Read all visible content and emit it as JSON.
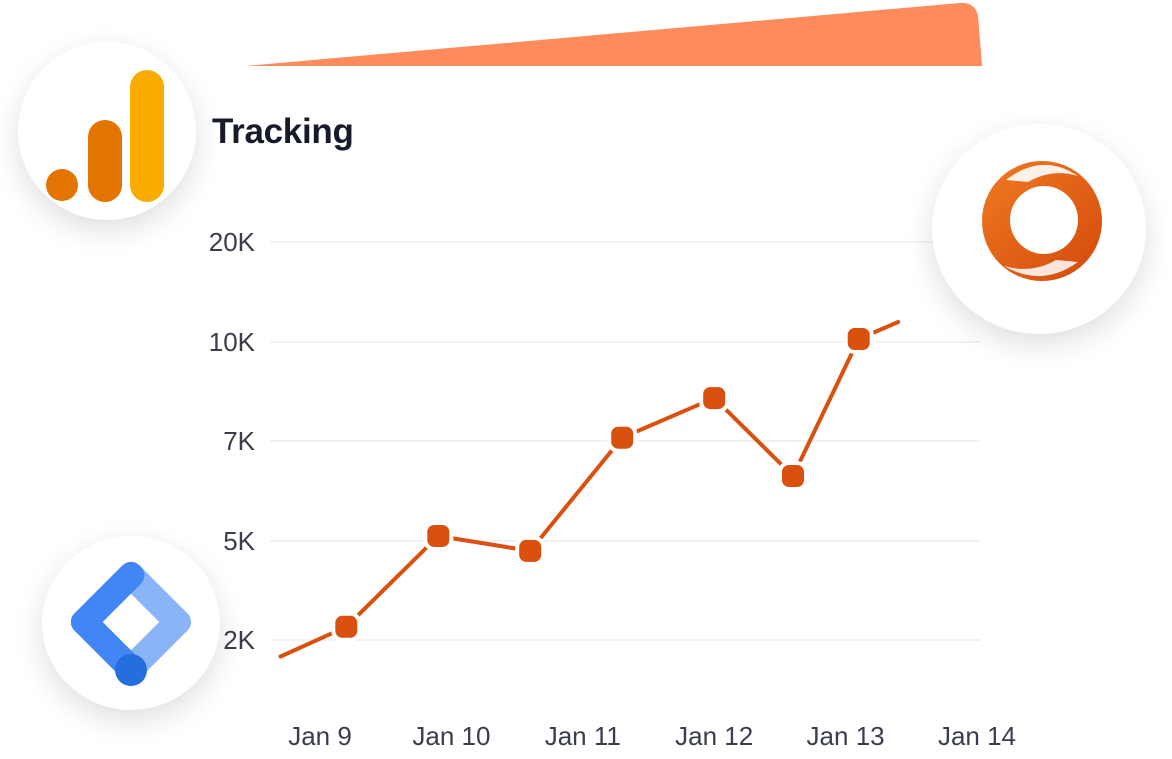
{
  "title": "Tracking",
  "colors": {
    "line": "#d9500f",
    "marker": "#d9500f",
    "banner": "#ff8a5b",
    "grid": "#f1f2f5",
    "title": "#171a2b"
  },
  "icons": {
    "top_left": "google-analytics-icon",
    "bottom_left": "google-tag-manager-icon",
    "top_right": "orange-ring-logo-icon"
  },
  "chart_data": {
    "type": "line",
    "title": "Tracking",
    "xlabel": "",
    "ylabel": "",
    "categories": [
      "Jan 9",
      "Jan 10",
      "Jan 11",
      "Jan 12",
      "Jan 13",
      "Jan 14"
    ],
    "y_ticks": [
      "20K",
      "10K",
      "7K",
      "5K",
      "2K"
    ],
    "y_tick_values": [
      20000,
      10000,
      7000,
      5000,
      2000
    ],
    "x": [
      8.7,
      9.2,
      9.9,
      10.6,
      11.3,
      12.0,
      12.6,
      13.1,
      13.4
    ],
    "values": [
      1500,
      2400,
      5100,
      4700,
      7100,
      8300,
      6300,
      10300,
      12000
    ],
    "markers": [
      false,
      true,
      true,
      true,
      true,
      true,
      true,
      true,
      false
    ],
    "grid": true,
    "legend": "none"
  }
}
